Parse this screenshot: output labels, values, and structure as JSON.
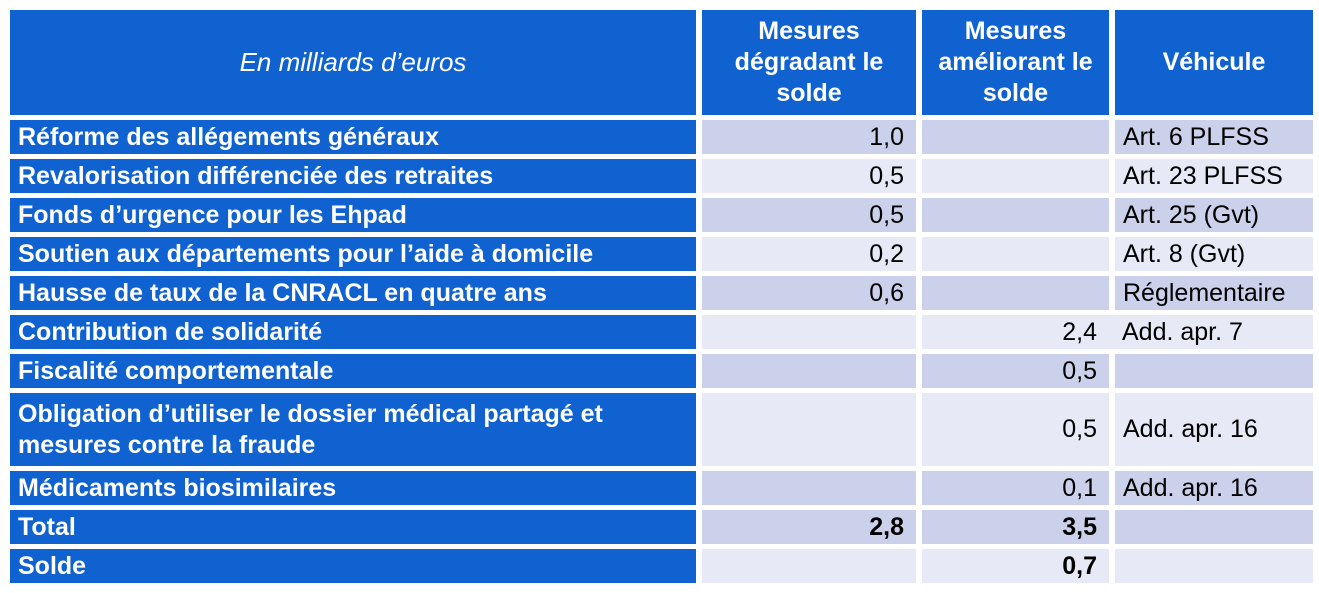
{
  "table": {
    "header": {
      "unit_label": "En milliards d’euros",
      "col_degradant": "Mesures dégradant le solde",
      "col_ameliorant": "Mesures améliorant le solde",
      "col_vehicule": "Véhicule"
    },
    "rows": [
      {
        "label": "Réforme des allégements généraux",
        "degradant": "1,0",
        "ameliorant": "",
        "vehicule": "Art. 6 PLFSS"
      },
      {
        "label": "Revalorisation différenciée des retraites",
        "degradant": "0,5",
        "ameliorant": "",
        "vehicule": "Art. 23 PLFSS"
      },
      {
        "label": "Fonds d’urgence pour les Ehpad",
        "degradant": "0,5",
        "ameliorant": "",
        "vehicule": "Art. 25 (Gvt)"
      },
      {
        "label": "Soutien aux départements pour l’aide à domicile",
        "degradant": "0,2",
        "ameliorant": "",
        "vehicule": "Art. 8 (Gvt)"
      },
      {
        "label": "Hausse de taux de la CNRACL en quatre ans",
        "degradant": "0,6",
        "ameliorant": "",
        "vehicule": "Réglementaire"
      },
      {
        "label": "Contribution de solidarité",
        "degradant": "",
        "ameliorant": "2,4",
        "vehicule": "Add. apr. 7"
      },
      {
        "label": "Fiscalité comportementale",
        "degradant": "",
        "ameliorant": "0,5",
        "vehicule": ""
      },
      {
        "label": "Obligation d’utiliser le dossier médical partagé et mesures contre la fraude",
        "degradant": "",
        "ameliorant": "0,5",
        "vehicule": "Add. apr. 16"
      },
      {
        "label": "Médicaments biosimilaires",
        "degradant": "",
        "ameliorant": "0,1",
        "vehicule": "Add. apr. 16"
      },
      {
        "label": "Total",
        "degradant": "2,8",
        "ameliorant": "3,5",
        "vehicule": ""
      },
      {
        "label": "Solde",
        "degradant": "",
        "ameliorant": "0,7",
        "vehicule": ""
      }
    ]
  },
  "colors": {
    "header_blue": "#1062d1",
    "band_dark": "#cbd1ea",
    "band_light": "#e7eaf6"
  }
}
